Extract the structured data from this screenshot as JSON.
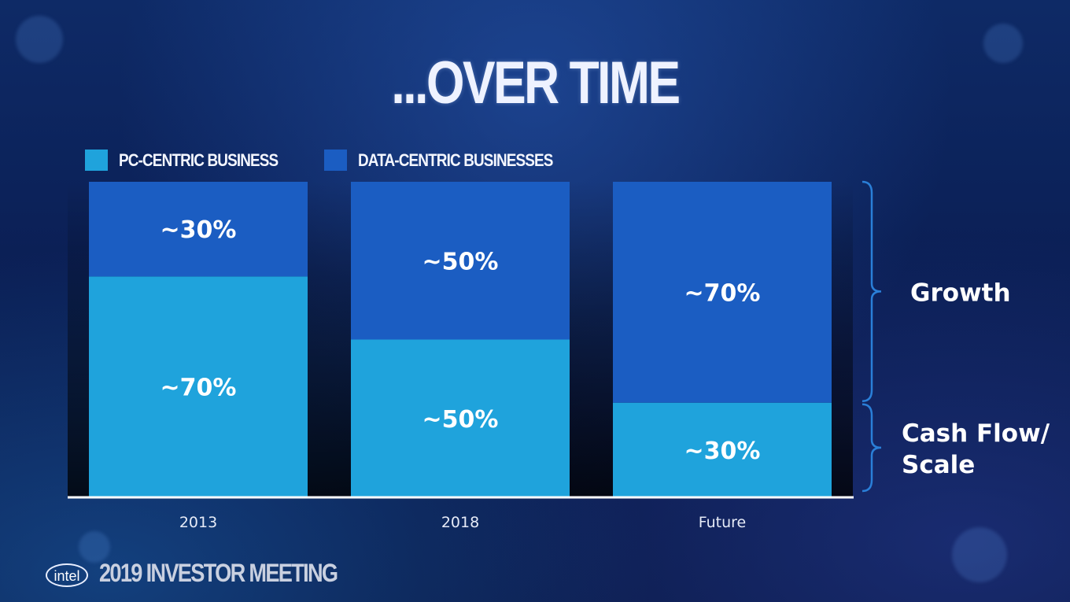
{
  "slide": {
    "title": "...OVER TIME",
    "logo_text": "intel",
    "event_label": "2019 INVESTOR MEETING"
  },
  "colors": {
    "pc_centric": "#1fa3dc",
    "data_centric": "#1b5dc2",
    "brace": "#2a7fd8",
    "axis": "#ffffff"
  },
  "chart_data": {
    "type": "bar",
    "stacked": true,
    "categories": [
      "2013",
      "2018",
      "Future"
    ],
    "series": [
      {
        "name": "PC-CENTRIC BUSINESS",
        "values": [
          70,
          50,
          30
        ],
        "labels": [
          "~70%",
          "~50%",
          "~30%"
        ]
      },
      {
        "name": "DATA-CENTRIC BUSINESSES",
        "values": [
          30,
          50,
          70
        ],
        "labels": [
          "~30%",
          "~50%",
          "~70%"
        ]
      }
    ],
    "ylim": [
      0,
      100
    ],
    "legend": "top-left",
    "grid": false,
    "annotations": [
      {
        "text": "Growth",
        "spans_series": "DATA-CENTRIC BUSINESSES"
      },
      {
        "text": "Cash Flow/ Scale",
        "lines": [
          "Cash Flow/",
          "Scale"
        ],
        "spans_series": "PC-CENTRIC BUSINESS"
      }
    ]
  }
}
